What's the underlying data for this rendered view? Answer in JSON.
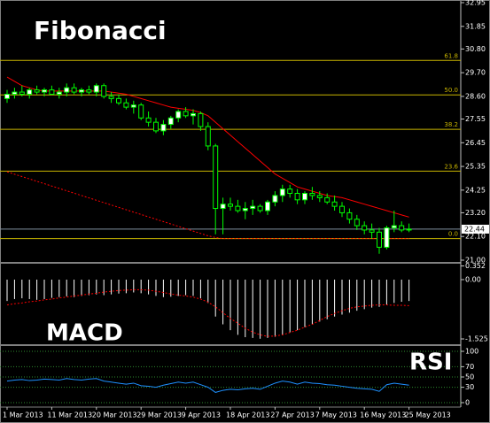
{
  "chart_data": [
    {
      "type": "candlestick",
      "title": "Fibonacci",
      "categories": [
        "1 Mar 2013",
        null,
        null,
        null,
        null,
        null,
        "11 Mar 2013",
        null,
        null,
        null,
        null,
        null,
        "20 Mar 2013",
        null,
        null,
        null,
        null,
        null,
        "29 Mar 2013",
        null,
        null,
        null,
        null,
        null,
        "9 Apr 2013",
        null,
        null,
        null,
        null,
        null,
        "18 Apr 2013",
        null,
        null,
        null,
        null,
        null,
        "27 Apr 2013",
        null,
        null,
        null,
        null,
        null,
        "7 May 2013",
        null,
        null,
        null,
        null,
        null,
        "16 May 2013",
        null,
        null,
        null,
        null,
        null,
        "25 May 2013"
      ],
      "open": [
        28.5,
        28.7,
        28.8,
        28.7,
        28.9,
        28.8,
        28.9,
        28.7,
        28.8,
        29.0,
        28.8,
        28.9,
        28.8,
        29.1,
        28.6,
        28.5,
        28.3,
        28.1,
        28.2,
        27.6,
        27.4,
        27.0,
        27.3,
        27.6,
        27.9,
        27.7,
        27.8,
        27.2,
        26.3,
        23.4,
        23.6,
        23.5,
        23.3,
        23.4,
        23.5,
        23.3,
        23.7,
        24.0,
        24.3,
        24.1,
        23.8,
        24.1,
        24.0,
        23.9,
        23.7,
        23.5,
        23.2,
        22.9,
        22.6,
        22.4,
        22.3,
        21.6,
        22.5,
        22.6,
        22.4
      ],
      "high": [
        28.9,
        29.0,
        29.1,
        29.0,
        29.1,
        29.0,
        29.1,
        29.0,
        29.2,
        29.2,
        29.0,
        29.1,
        29.2,
        29.2,
        28.8,
        28.7,
        28.5,
        28.4,
        28.3,
        27.9,
        27.6,
        27.5,
        27.7,
        28.0,
        28.1,
        28.0,
        27.9,
        27.4,
        26.4,
        23.9,
        23.9,
        23.8,
        23.7,
        23.8,
        23.6,
        23.8,
        24.2,
        24.5,
        24.5,
        24.3,
        24.2,
        24.4,
        24.2,
        24.1,
        24.0,
        23.7,
        23.4,
        23.1,
        22.8,
        22.7,
        22.5,
        22.6,
        23.3,
        22.8,
        22.7
      ],
      "low": [
        28.3,
        28.5,
        28.6,
        28.5,
        28.7,
        28.6,
        28.7,
        28.5,
        28.6,
        28.7,
        28.6,
        28.7,
        28.6,
        28.5,
        28.3,
        28.2,
        28.0,
        27.8,
        27.5,
        27.2,
        26.9,
        26.8,
        27.1,
        27.4,
        27.6,
        27.3,
        27.0,
        26.1,
        22.2,
        22.2,
        23.3,
        23.2,
        22.9,
        23.1,
        23.2,
        23.1,
        23.5,
        23.7,
        23.9,
        23.6,
        23.6,
        23.8,
        23.7,
        23.6,
        23.3,
        23.0,
        22.7,
        22.4,
        22.2,
        22.0,
        21.3,
        21.5,
        22.3,
        22.3,
        22.3
      ],
      "close": [
        28.7,
        28.8,
        28.7,
        28.9,
        28.8,
        28.9,
        28.7,
        28.8,
        29.0,
        28.8,
        28.9,
        28.8,
        29.1,
        28.6,
        28.5,
        28.3,
        28.1,
        28.2,
        27.6,
        27.4,
        27.0,
        27.3,
        27.6,
        27.9,
        27.7,
        27.8,
        27.2,
        26.3,
        23.4,
        23.6,
        23.5,
        23.3,
        23.4,
        23.5,
        23.3,
        23.7,
        24.0,
        24.3,
        24.1,
        23.8,
        24.1,
        24.0,
        23.9,
        23.7,
        23.5,
        23.2,
        22.9,
        22.6,
        22.4,
        22.3,
        21.6,
        22.5,
        22.6,
        22.4,
        22.44
      ],
      "color": "#00ff00",
      "series": [
        {
          "color": "#ff0000",
          "dash": false,
          "values": [
            29.5,
            29.3,
            29.1,
            29.0,
            28.9,
            28.85,
            28.85,
            28.85,
            28.85,
            28.85,
            28.85,
            28.85,
            28.85,
            28.85,
            28.8,
            28.75,
            28.7,
            28.6,
            28.5,
            28.4,
            28.3,
            28.2,
            28.1,
            28.05,
            28.0,
            27.95,
            27.85,
            27.7,
            27.4,
            27.1,
            26.8,
            26.5,
            26.2,
            25.9,
            25.6,
            25.3,
            25.0,
            24.8,
            24.6,
            24.4,
            24.3,
            24.2,
            24.1,
            24.0,
            23.95,
            23.9,
            23.8,
            23.7,
            23.6,
            23.5,
            23.4,
            23.3,
            23.2,
            23.1,
            23.0
          ]
        },
        {
          "color": "#ff0000",
          "dash": true,
          "values": [
            25.1,
            24.99,
            24.88,
            24.77,
            24.66,
            24.55,
            24.44,
            24.33,
            24.22,
            24.11,
            24.0,
            23.89,
            23.78,
            23.67,
            23.56,
            23.45,
            23.34,
            23.23,
            23.12,
            23.01,
            22.9,
            22.79,
            22.68,
            22.57,
            22.46,
            22.35,
            22.24,
            22.13,
            22.05,
            22.0,
            22.0,
            22.0,
            22.0,
            22.0,
            22.0,
            22.0,
            22.0,
            22.0,
            22.0,
            22.0,
            22.0,
            22.0,
            22.0,
            22.0,
            22.0,
            22.0,
            22.0,
            22.0,
            22.0,
            22.0,
            22.0,
            22.0,
            22.0,
            22.0,
            22.0
          ]
        }
      ],
      "fib_color": "#c8b400",
      "fib_levels": [
        {
          "label": "61.8",
          "price": 30.27
        },
        {
          "label": "50.0",
          "price": 28.67
        },
        {
          "label": "38.2",
          "price": 27.07
        },
        {
          "label": "23.6",
          "price": 25.13
        },
        {
          "label": "0.0",
          "price": 22.0
        }
      ],
      "last_price": 22.44,
      "ylim": [
        21.0,
        32.95
      ],
      "yticks": [
        32.95,
        31.85,
        {
          "value": 30.8,
          "label": "30.80"
        },
        {
          "value": 29.7,
          "label": "29.70"
        },
        {
          "value": 28.6,
          "label": "28.60"
        },
        27.55,
        26.45,
        25.35,
        24.25,
        {
          "value": 23.2,
          "label": "23.20"
        },
        {
          "value": 22.1,
          "label": "22.10"
        },
        {
          "value": 21.0,
          "label": "21.00"
        }
      ],
      "grid": false
    },
    {
      "type": "macd",
      "title": "MACD",
      "series": [
        {
          "type": "bar",
          "color": "#ffffff",
          "values": [
            -0.55,
            -0.5,
            -0.48,
            -0.5,
            -0.52,
            -0.5,
            -0.47,
            -0.45,
            -0.43,
            -0.45,
            -0.42,
            -0.4,
            -0.38,
            -0.4,
            -0.38,
            -0.36,
            -0.35,
            -0.33,
            -0.35,
            -0.38,
            -0.42,
            -0.45,
            -0.44,
            -0.42,
            -0.4,
            -0.42,
            -0.48,
            -0.6,
            -0.95,
            -1.15,
            -1.3,
            -1.42,
            -1.48,
            -1.5,
            -1.52,
            -1.5,
            -1.47,
            -1.42,
            -1.36,
            -1.3,
            -1.22,
            -1.15,
            -1.08,
            -1.02,
            -0.95,
            -0.9,
            -0.85,
            -0.8,
            -0.76,
            -0.72,
            -0.7,
            -0.65,
            -0.6,
            -0.57,
            -0.55
          ]
        },
        {
          "type": "line",
          "color": "#ff0000",
          "dash": true,
          "values": [
            -0.65,
            -0.62,
            -0.6,
            -0.57,
            -0.55,
            -0.52,
            -0.5,
            -0.47,
            -0.45,
            -0.42,
            -0.4,
            -0.37,
            -0.35,
            -0.32,
            -0.3,
            -0.28,
            -0.27,
            -0.26,
            -0.26,
            -0.27,
            -0.3,
            -0.33,
            -0.37,
            -0.4,
            -0.42,
            -0.45,
            -0.5,
            -0.58,
            -0.7,
            -0.85,
            -1.0,
            -1.12,
            -1.25,
            -1.35,
            -1.42,
            -1.46,
            -1.45,
            -1.42,
            -1.36,
            -1.3,
            -1.22,
            -1.15,
            -1.05,
            -0.95,
            -0.87,
            -0.8,
            -0.74,
            -0.7,
            -0.68,
            -0.66,
            -0.65,
            -0.65,
            -0.66,
            -0.66,
            -0.67
          ]
        }
      ],
      "ylim": [
        -1.525,
        0.352
      ],
      "yticks": [
        0.352,
        {
          "value": 0,
          "label": "0.00"
        },
        -1.525
      ],
      "grid": false
    },
    {
      "type": "line",
      "title": "RSI",
      "series": [
        {
          "color": "#1e90ff",
          "dash": false,
          "values": [
            42,
            44,
            45,
            43,
            44,
            46,
            45,
            44,
            47,
            45,
            44,
            46,
            47,
            42,
            40,
            38,
            36,
            38,
            33,
            32,
            30,
            34,
            37,
            40,
            38,
            40,
            35,
            30,
            20,
            24,
            26,
            25,
            27,
            28,
            26,
            32,
            38,
            42,
            40,
            36,
            40,
            38,
            37,
            35,
            34,
            32,
            30,
            28,
            27,
            26,
            22,
            35,
            38,
            36,
            34
          ]
        }
      ],
      "ylim": [
        0,
        100
      ],
      "yticks": [
        100,
        70,
        50,
        30,
        0
      ],
      "grid": true,
      "grid_color": "#2e8b2e"
    }
  ]
}
